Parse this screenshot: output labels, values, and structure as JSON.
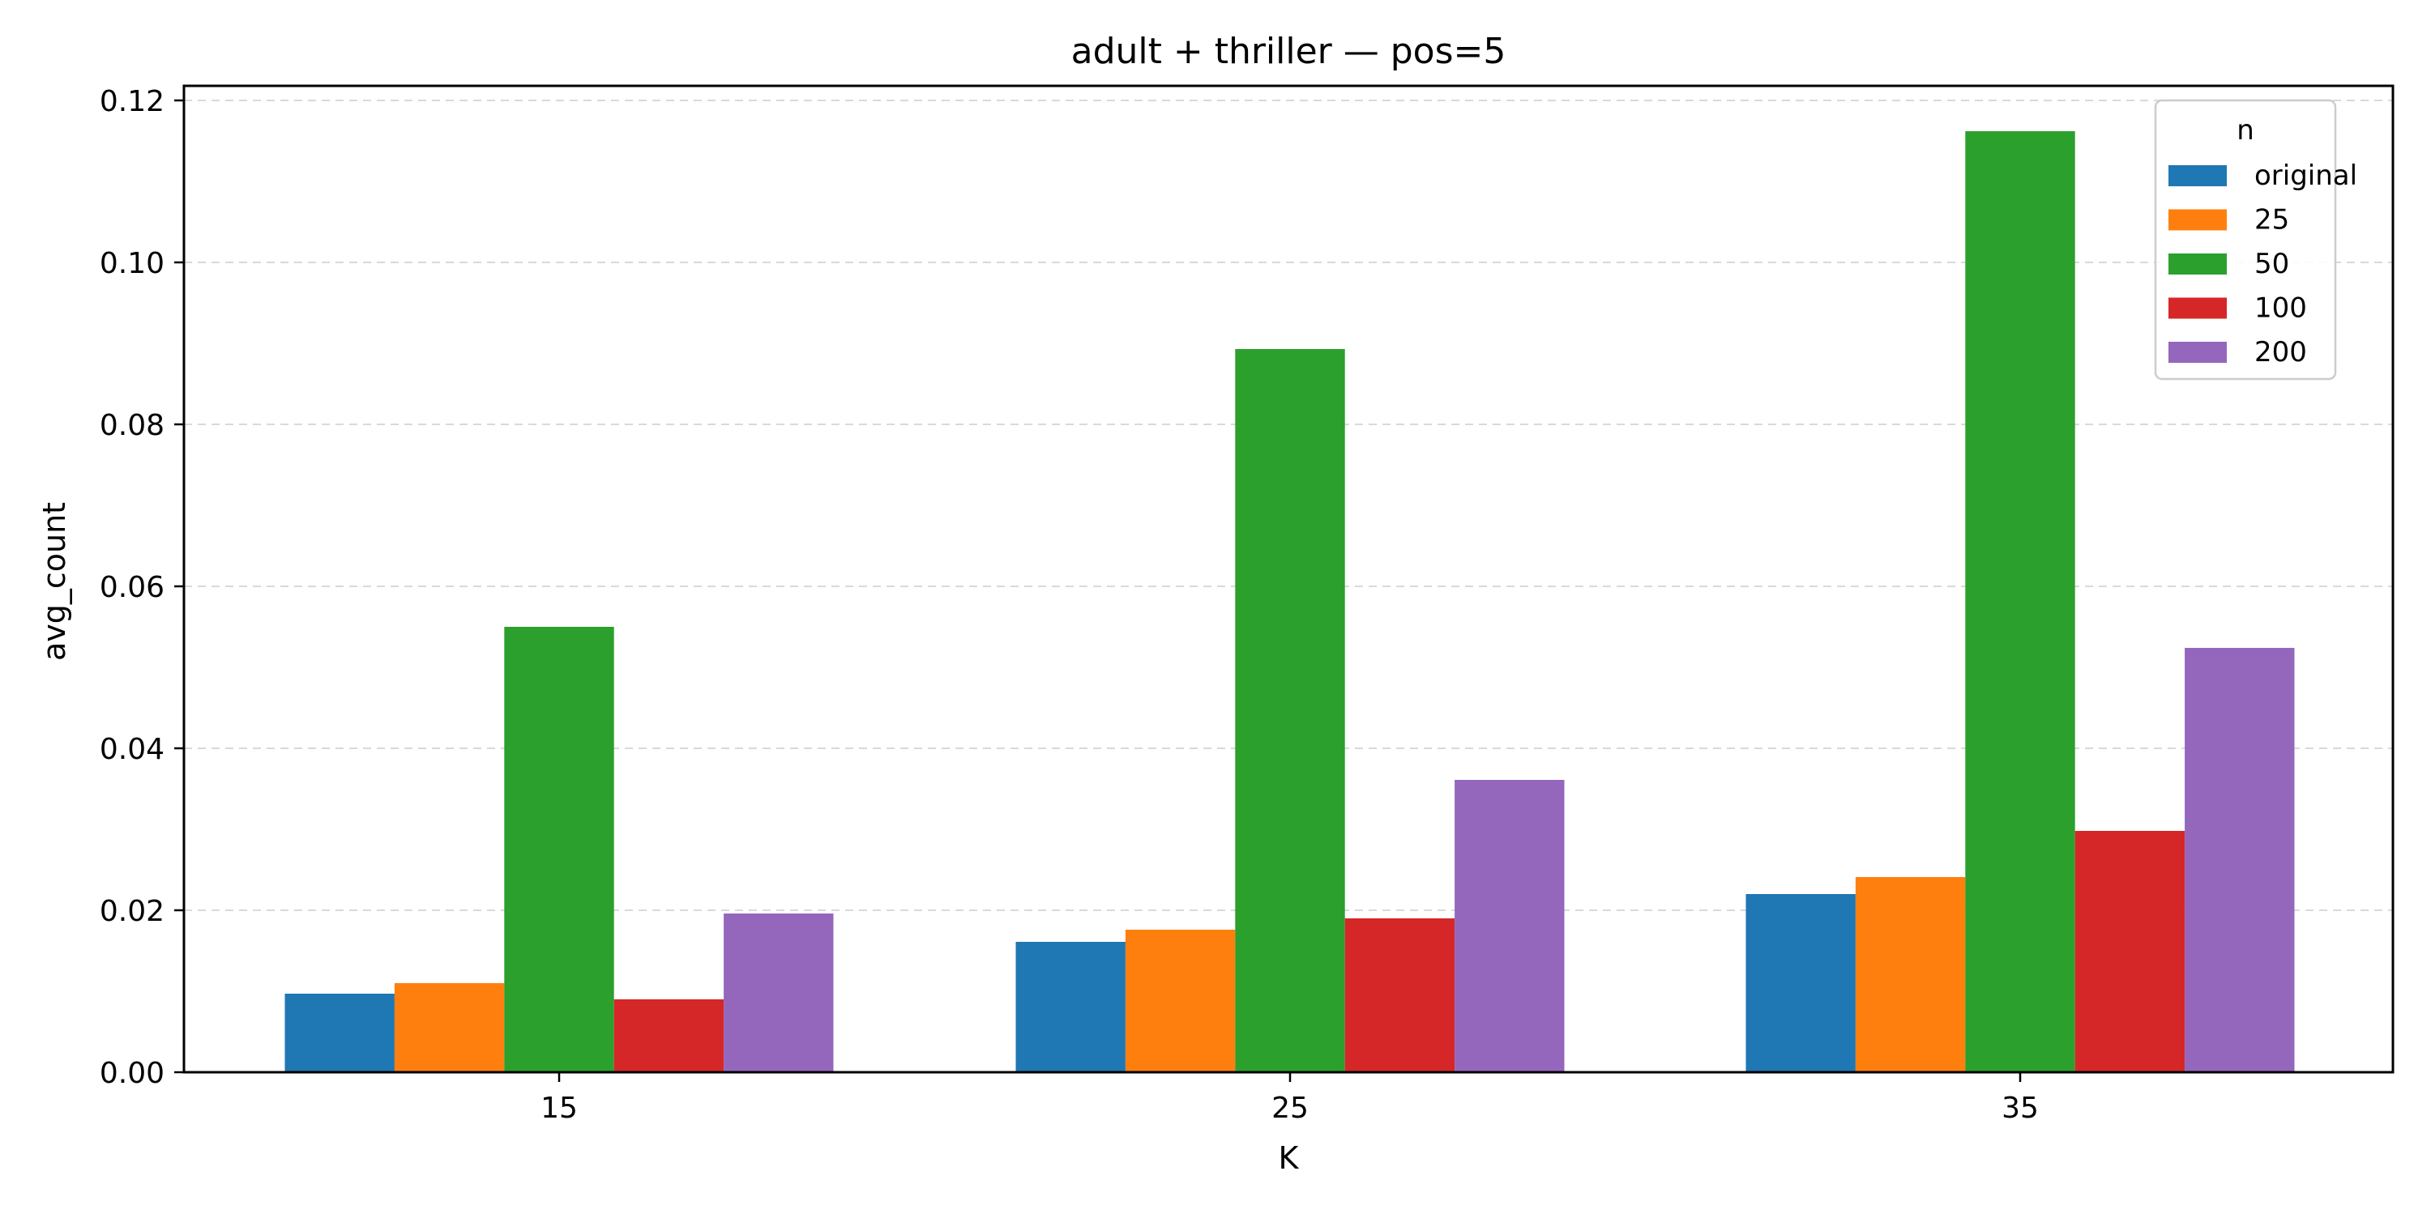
{
  "chart_data": {
    "type": "bar",
    "title": "adult + thriller — pos=5",
    "xlabel": "K",
    "ylabel": "avg_count",
    "categories": [
      "15",
      "25",
      "35"
    ],
    "ylim": [
      0,
      0.1218
    ],
    "yticks": [
      "0.00",
      "0.02",
      "0.04",
      "0.06",
      "0.08",
      "0.10",
      "0.12"
    ],
    "grid": "y, dashed",
    "legend": {
      "title": "n",
      "placement": "top-right"
    },
    "series": [
      {
        "name": "original",
        "color": "#1f77b4",
        "values": [
          0.0097,
          0.0161,
          0.022
        ]
      },
      {
        "name": "25",
        "color": "#ff7f0e",
        "values": [
          0.011,
          0.0176,
          0.0241
        ]
      },
      {
        "name": "50",
        "color": "#2ca02c",
        "values": [
          0.055,
          0.0893,
          0.1162
        ]
      },
      {
        "name": "100",
        "color": "#d62728",
        "values": [
          0.009,
          0.019,
          0.0298
        ]
      },
      {
        "name": "200",
        "color": "#9467bd",
        "values": [
          0.0196,
          0.0361,
          0.0524
        ]
      }
    ]
  }
}
